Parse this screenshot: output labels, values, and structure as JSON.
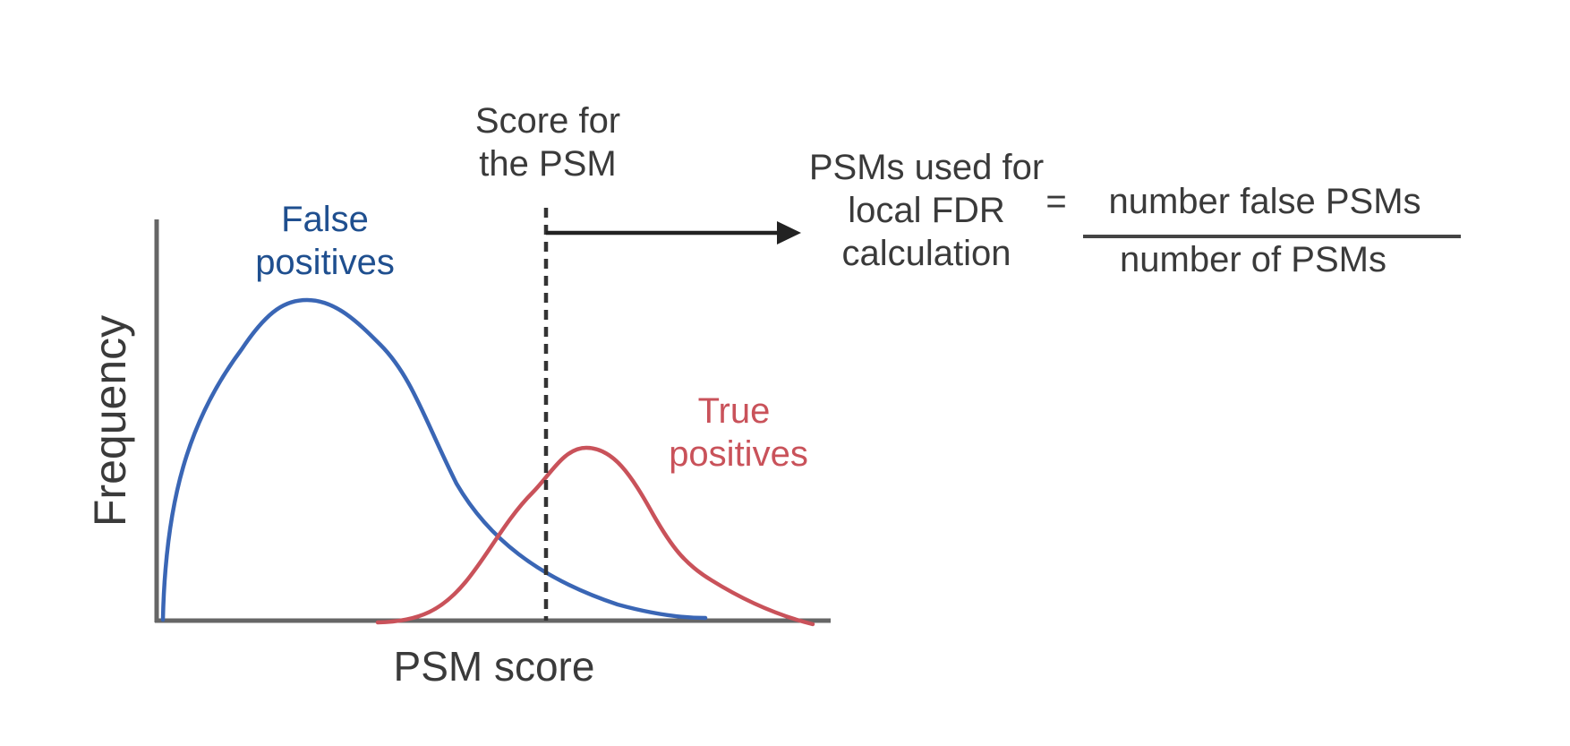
{
  "axes": {
    "ylabel": "Frequency",
    "xlabel": "PSM score"
  },
  "curves": {
    "false": {
      "line1": "False",
      "line2": "positives",
      "color": "#3a66b5"
    },
    "true": {
      "line1": "True",
      "line2": "positives",
      "color": "#c9525a"
    }
  },
  "threshold": {
    "line1": "Score for",
    "line2": "the PSM"
  },
  "formula": {
    "lhs_line1": "PSMs used for",
    "lhs_line2": "local FDR",
    "lhs_line3": "calculation",
    "equals": "=",
    "numerator": "number false PSMs",
    "denominator": "number of PSMs"
  },
  "colors": {
    "axis": "#666666",
    "text": "#3a3a3a",
    "arrow": "#222222",
    "false_label": "#1f4f8f",
    "true_label": "#c9525a"
  }
}
